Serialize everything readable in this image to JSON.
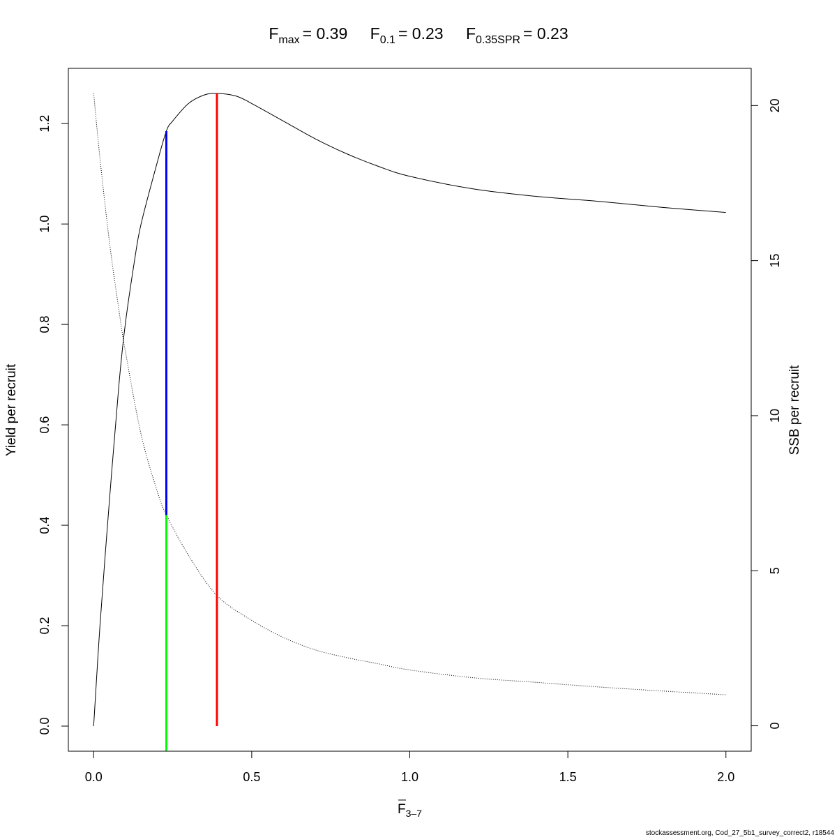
{
  "title": {
    "items": [
      {
        "symbol": "F",
        "subscript": "max",
        "value": "= 0.39"
      },
      {
        "symbol": "F",
        "subscript": "0.1",
        "value": "= 0.23"
      },
      {
        "symbol": "F",
        "subscript": "0.35SPR",
        "value": "= 0.23"
      }
    ]
  },
  "caption": "stockassessment.org, Cod_27_5b1_survey_correct2, r18544",
  "chart_data": {
    "type": "line",
    "xlabel": {
      "symbol": "F",
      "overline": true,
      "subscript": "3–7"
    },
    "ylabel": "Yield per recruit",
    "y2label": "SSB per recruit",
    "xlim": [
      -0.08,
      2.08
    ],
    "ylim": [
      -0.05,
      1.31
    ],
    "y2lim": [
      -0.82,
      21.2
    ],
    "x_ticks": [
      0.0,
      0.5,
      1.0,
      1.5,
      2.0
    ],
    "x_tick_labels": [
      "0.0",
      "0.5",
      "1.0",
      "1.5",
      "2.0"
    ],
    "y_ticks": [
      0.0,
      0.2,
      0.4,
      0.6,
      0.8,
      1.0,
      1.2
    ],
    "y_tick_labels": [
      "0.0",
      "0.2",
      "0.4",
      "0.6",
      "0.8",
      "1.0",
      "1.2"
    ],
    "y2_ticks": [
      0,
      5,
      10,
      15,
      20
    ],
    "y2_tick_labels": [
      "0",
      "5",
      "10",
      "15",
      "20"
    ],
    "grid": false,
    "series": [
      {
        "axis": "left",
        "style": "solid",
        "color": "#000000",
        "x": [
          0.0,
          0.02,
          0.05,
          0.08,
          0.1,
          0.13,
          0.15,
          0.2,
          0.23,
          0.25,
          0.3,
          0.35,
          0.39,
          0.45,
          0.5,
          0.6,
          0.7,
          0.8,
          0.9,
          1.0,
          1.2,
          1.4,
          1.6,
          1.8,
          2.0
        ],
        "y": [
          0.0,
          0.2,
          0.45,
          0.68,
          0.8,
          0.93,
          1.0,
          1.12,
          1.185,
          1.205,
          1.24,
          1.257,
          1.26,
          1.255,
          1.24,
          1.205,
          1.17,
          1.14,
          1.115,
          1.095,
          1.07,
          1.055,
          1.045,
          1.033,
          1.023
        ]
      },
      {
        "axis": "right",
        "style": "dotted",
        "color": "#000000",
        "x": [
          0.0,
          0.02,
          0.05,
          0.08,
          0.1,
          0.15,
          0.2,
          0.23,
          0.3,
          0.39,
          0.5,
          0.6,
          0.7,
          0.8,
          0.9,
          1.0,
          1.2,
          1.4,
          1.6,
          1.8,
          2.0
        ],
        "y": [
          20.4,
          18.3,
          15.6,
          13.4,
          12.1,
          9.4,
          7.6,
          6.8,
          5.5,
          4.2,
          3.4,
          2.85,
          2.45,
          2.2,
          2.0,
          1.8,
          1.55,
          1.4,
          1.25,
          1.12,
          1.0
        ]
      }
    ],
    "reference_lines": [
      {
        "name": "Fmax",
        "x": 0.39,
        "y_from": 0.0,
        "y_to": 1.26,
        "color": "#ff0000"
      },
      {
        "name": "F0.1",
        "x": 0.23,
        "y_from": 0.42,
        "y_to": 1.185,
        "color": "#0000ff"
      },
      {
        "name": "F0.35SPR",
        "x": 0.23,
        "y_from": -0.05,
        "y_to": 0.42,
        "color": "#00ff00"
      }
    ]
  }
}
